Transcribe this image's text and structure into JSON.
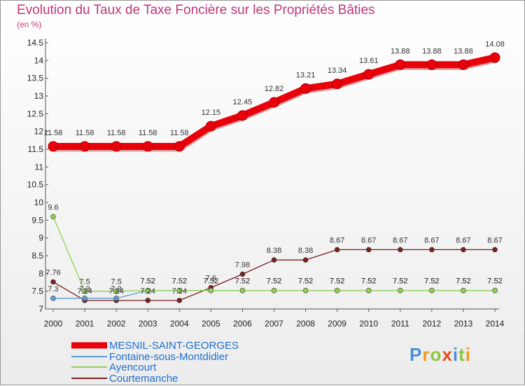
{
  "chart_data": {
    "type": "line",
    "title": "Evolution du Taux de Taxe Foncière sur les Propriétés Bâties",
    "unit_label": "(en %)",
    "xlabel": "",
    "ylabel": "",
    "x": [
      "2000",
      "2001",
      "2002",
      "2003",
      "2004",
      "2005",
      "2006",
      "2007",
      "2008",
      "2009",
      "2010",
      "2011",
      "2012",
      "2013",
      "2014"
    ],
    "ylim": [
      7,
      14.5
    ],
    "yticks": [
      "7",
      "7.5",
      "8",
      "8.5",
      "9",
      "9.5",
      "10",
      "10.5",
      "11",
      "11.5",
      "12",
      "12.5",
      "13",
      "13.5",
      "14",
      "14.5"
    ],
    "grid": false,
    "legend_position": "bottom-left",
    "series": [
      {
        "name": "MESNIL-SAINT-GEORGES",
        "color": "#e8000b",
        "values": [
          11.58,
          11.58,
          11.58,
          11.58,
          11.58,
          12.15,
          12.45,
          12.82,
          13.21,
          13.34,
          13.61,
          13.88,
          13.88,
          13.88,
          14.08
        ],
        "labels": [
          "11.58",
          "11.58",
          "11.58",
          "11.58",
          "11.58",
          "12.15",
          "12.45",
          "12.82",
          "13.21",
          "13.34",
          "13.61",
          "13.88",
          "13.88",
          "13.88",
          "14.08"
        ]
      },
      {
        "name": "Fontaine-sous-Montdidier",
        "color": "#5b9bd5",
        "values": [
          7.3,
          7.3,
          7.3,
          7.52,
          7.52,
          7.52,
          7.52,
          7.52,
          7.52,
          7.52,
          7.52,
          7.52,
          7.52,
          7.52,
          7.52
        ],
        "labels": [
          "7.3",
          "7.3",
          "7.3",
          "7.52",
          "7.52",
          "7.52",
          "7.52",
          "7.52",
          "7.52",
          "7.52",
          "7.52",
          "7.52",
          "7.52",
          "7.52",
          "7.52"
        ]
      },
      {
        "name": "Ayencourt",
        "color": "#92d050",
        "values": [
          9.6,
          7.5,
          7.5,
          7.52,
          7.52,
          7.52,
          7.52,
          7.52,
          7.52,
          7.52,
          7.52,
          7.52,
          7.52,
          7.52,
          7.52
        ],
        "labels": [
          "9.6",
          "7.5",
          "7.5",
          "7.52",
          "7.52",
          "7.52",
          "7.52",
          "7.52",
          "7.52",
          "7.52",
          "7.52",
          "7.52",
          "7.52",
          "7.52",
          "7.52"
        ]
      },
      {
        "name": "Courtemanche",
        "color": "#7b1f1f",
        "values": [
          7.76,
          7.24,
          7.24,
          7.24,
          7.24,
          7.6,
          7.98,
          8.38,
          8.38,
          8.67,
          8.67,
          8.67,
          8.67,
          8.67,
          8.67
        ],
        "labels": [
          "7.76",
          "7.24",
          "7.24",
          "7.24",
          "7.24",
          "7.6",
          "7.98",
          "8.38",
          "8.38",
          "8.67",
          "8.67",
          "8.67",
          "8.67",
          "8.67",
          "8.67"
        ]
      }
    ]
  },
  "logo": {
    "text": "Proxiti",
    "letter_colors": [
      "#4a8fd8",
      "#f39a1e",
      "#8cc63f",
      "#e84c1e",
      "#4a8fd8",
      "#8cc63f",
      "#f39a1e"
    ]
  }
}
